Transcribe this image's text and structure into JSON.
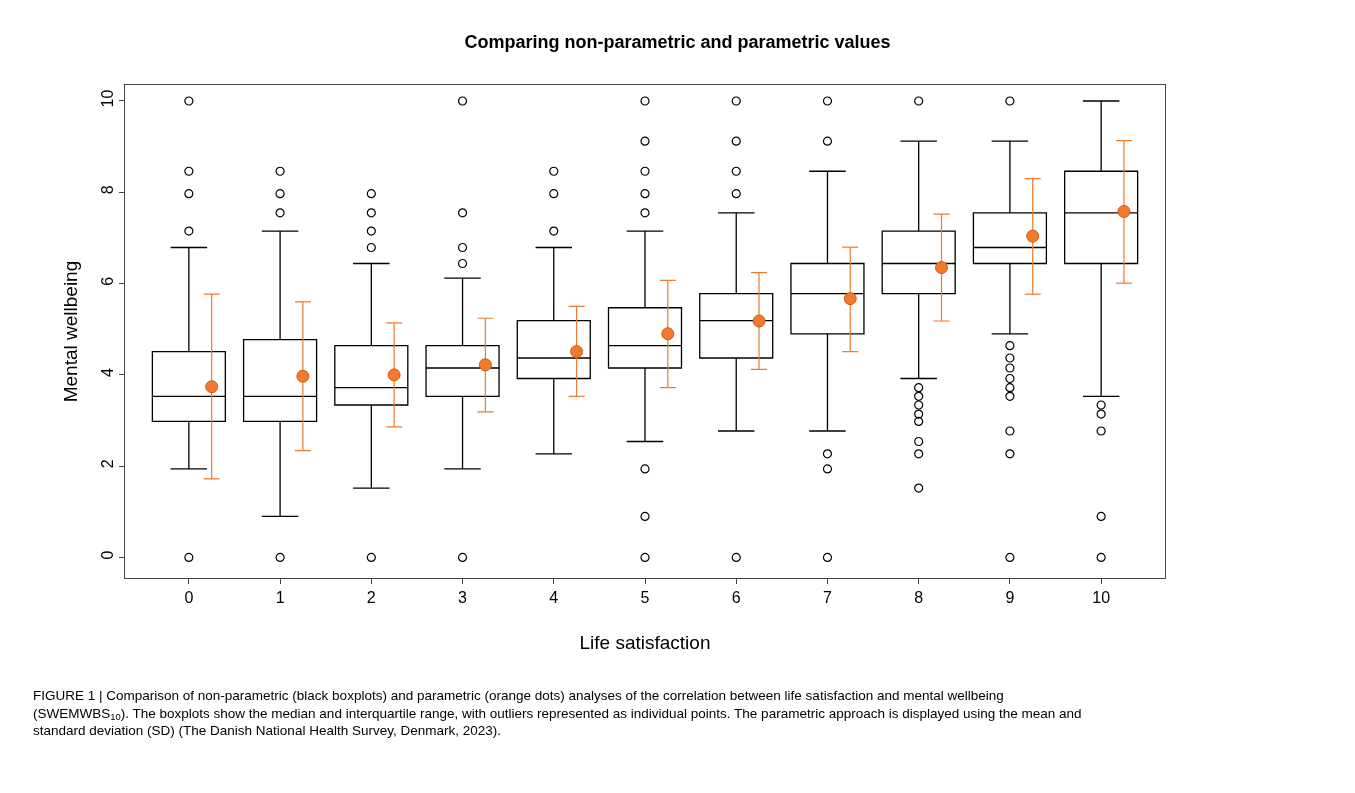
{
  "chart_data": {
    "type": "box",
    "title": "Comparing non-parametric and parametric values",
    "xlabel": "Life satisfaction",
    "ylabel": "Mental wellbeing",
    "categories": [
      "0",
      "1",
      "2",
      "3",
      "4",
      "5",
      "6",
      "7",
      "8",
      "9",
      "10"
    ],
    "boxes": [
      {
        "low": 1.94,
        "q1": 2.98,
        "median": 3.53,
        "q3": 4.51,
        "high": 6.79,
        "outliers": [
          0,
          7.15,
          7.97,
          8.46,
          10
        ]
      },
      {
        "low": 0.9,
        "q1": 2.98,
        "median": 3.53,
        "q3": 4.77,
        "high": 7.15,
        "outliers": [
          0,
          7.55,
          7.97,
          8.46
        ]
      },
      {
        "low": 1.52,
        "q1": 3.34,
        "median": 3.72,
        "q3": 4.64,
        "high": 6.44,
        "outliers": [
          0,
          6.79,
          7.15,
          7.55,
          7.97
        ]
      },
      {
        "low": 1.94,
        "q1": 3.53,
        "median": 4.15,
        "q3": 4.64,
        "high": 6.12,
        "outliers": [
          0,
          6.44,
          6.79,
          7.55,
          10
        ]
      },
      {
        "low": 2.27,
        "q1": 3.92,
        "median": 4.37,
        "q3": 5.19,
        "high": 6.79,
        "outliers": [
          7.15,
          7.97,
          8.46
        ]
      },
      {
        "low": 2.54,
        "q1": 4.15,
        "median": 4.64,
        "q3": 5.47,
        "high": 7.15,
        "outliers": [
          0,
          0.9,
          1.94,
          7.55,
          7.97,
          8.46,
          9.12,
          10
        ]
      },
      {
        "low": 2.77,
        "q1": 4.37,
        "median": 5.19,
        "q3": 5.78,
        "high": 7.55,
        "outliers": [
          0,
          7.97,
          8.46,
          9.12,
          10
        ]
      },
      {
        "low": 2.77,
        "q1": 4.9,
        "median": 5.78,
        "q3": 6.44,
        "high": 8.46,
        "outliers": [
          0,
          1.94,
          2.27,
          9.12,
          10
        ]
      },
      {
        "low": 3.92,
        "q1": 5.78,
        "median": 6.44,
        "q3": 7.15,
        "high": 9.12,
        "outliers": [
          1.52,
          2.27,
          2.54,
          2.98,
          3.14,
          3.34,
          3.53,
          3.72,
          10
        ]
      },
      {
        "low": 4.9,
        "q1": 6.44,
        "median": 6.79,
        "q3": 7.55,
        "high": 9.12,
        "outliers": [
          0,
          2.27,
          2.77,
          3.53,
          3.72,
          3.92,
          4.15,
          4.37,
          4.64,
          10
        ]
      },
      {
        "low": 3.53,
        "q1": 6.44,
        "median": 7.55,
        "q3": 8.46,
        "high": 10,
        "outliers": [
          0,
          0.9,
          2.77,
          3.14,
          3.34
        ]
      }
    ],
    "series": [
      {
        "type": "scatter",
        "color": "#f07a2f",
        "x": [
          "0",
          "1",
          "2",
          "3",
          "4",
          "5",
          "6",
          "7",
          "8",
          "9",
          "10"
        ],
        "values": [
          3.74,
          3.97,
          4.0,
          4.22,
          4.51,
          4.9,
          5.18,
          5.67,
          6.35,
          7.04,
          7.58
        ],
        "errors": [
          [
            1.72,
            5.77
          ],
          [
            2.34,
            5.6
          ],
          [
            2.86,
            5.14
          ],
          [
            3.19,
            5.24
          ],
          [
            3.53,
            5.5
          ],
          [
            3.72,
            6.07
          ],
          [
            4.12,
            6.24
          ],
          [
            4.51,
            6.8
          ],
          [
            5.18,
            7.52
          ],
          [
            5.77,
            8.3
          ],
          [
            6.01,
            9.13
          ]
        ]
      }
    ],
    "ylim": [
      -0.45,
      10.35
    ],
    "yticks": [
      0,
      2,
      4,
      6,
      8,
      10
    ],
    "marker": "circle",
    "annotations": [
      "FIGURE 1 | Comparison of non-parametric (black boxplots) and parametric (orange dots) analyses of the correlation between life satisfaction and mental wellbeing (SWEMWBS$_{10}$). The boxplots show the median and interquartile range, with outliers represented as individual points. The parametric approach is displayed using the mean and standard deviation (SD) (The Danish National Health Survey, Denmark, 2023)."
    ]
  }
}
